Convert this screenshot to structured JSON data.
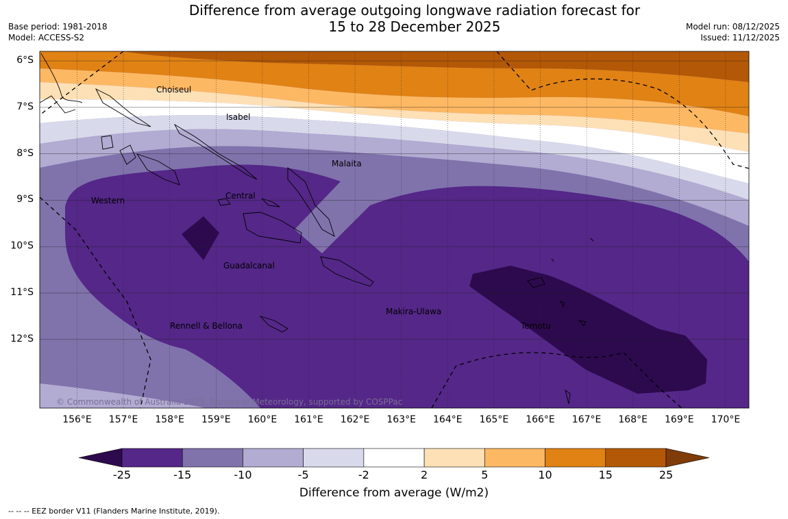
{
  "title_line1": "Difference from average outgoing longwave radiation forecast for",
  "title_line2": "15 to 28 December 2025",
  "base_period": "Base period: 1981-2018",
  "model": "Model: ACCESS-S2",
  "model_run": "Model run: 08/12/2025",
  "issued": "Issued: 11/12/2025",
  "copyright": "© Commonwealth of Australia 2025, Bureau of Meteorology, supported by COSPPac",
  "footnote": "--  --  -- EEZ border V11 (Flanders Marine Institute, 2019).",
  "colorbar_title": "Difference from average (W/m2)",
  "colorbar_ticks": [
    "-25",
    "-15",
    "-10",
    "-5",
    "-2",
    "2",
    "5",
    "10",
    "15",
    "25"
  ],
  "colorbar_colors": [
    "#2d0a4e",
    "#542788",
    "#8073ac",
    "#b2abd2",
    "#d8daeb",
    "#ffffff",
    "#fee0b6",
    "#fdb863",
    "#e08214",
    "#b35806",
    "#7f3b08"
  ],
  "lat_labels": [
    "6°S",
    "7°S",
    "8°S",
    "9°S",
    "10°S",
    "11°S",
    "12°S"
  ],
  "lon_labels": [
    "156°E",
    "157°E",
    "158°E",
    "159°E",
    "160°E",
    "161°E",
    "162°E",
    "163°E",
    "164°E",
    "165°E",
    "166°E",
    "167°E",
    "168°E",
    "169°E",
    "170°E"
  ],
  "province_labels": [
    "Choiseul",
    "Isabel",
    "Malaita",
    "Western",
    "Central",
    "Guadalcanal",
    "Rennell & Bellona",
    "Makira-Ulawa",
    "Temotu"
  ]
}
